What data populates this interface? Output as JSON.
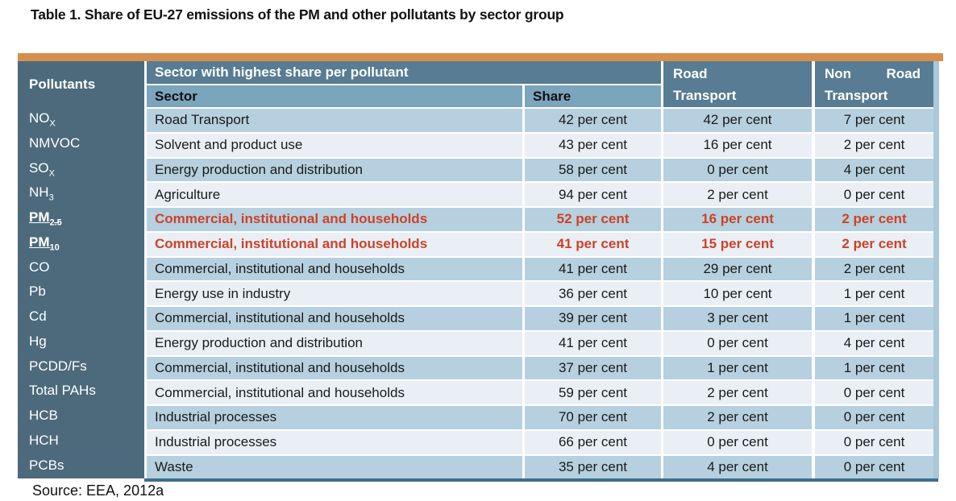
{
  "page": {
    "title": "Table 1. Share of EU-27 emissions of the PM and other pollutants by sector group",
    "source": "Source: EEA, 2012a"
  },
  "colors": {
    "accent_bar_orange": "#d68f4d",
    "pollutants_column_dark": "#4d6a7d",
    "header_blue": "#577c93",
    "subheader_blue": "#7ba4bd",
    "row_light_blue": "#b6d0df",
    "row_pale": "#eaeff5",
    "highlight_red": "#cd4227",
    "bottom_border_blue": "#3f6e8c",
    "right_border_strip": "#a9c8da"
  },
  "table": {
    "headers": {
      "pollutants": "Pollutants",
      "group": "Sector with highest share per pollutant",
      "sector": "Sector",
      "share": "Share",
      "road": {
        "line1": "Road",
        "line2": "Transport"
      },
      "nonroad": {
        "word1": "Non",
        "word2": "Road",
        "line2": "Transport"
      }
    },
    "rows": [
      {
        "pollutant": "NO",
        "sub": "X",
        "highlight": false,
        "sector": "Road Transport",
        "share": "42 per cent",
        "road": "42 per cent",
        "nonroad": "7 per cent"
      },
      {
        "pollutant": "NMVOC",
        "sub": "",
        "highlight": false,
        "sector": "Solvent and product use",
        "share": "43 per cent",
        "road": "16 per cent",
        "nonroad": "2 per cent"
      },
      {
        "pollutant": "SO",
        "sub": "X",
        "highlight": false,
        "sector": "Energy production and distribution",
        "share": "58 per cent",
        "road": "0 per cent",
        "nonroad": "4 per cent"
      },
      {
        "pollutant": "NH",
        "sub": "3",
        "highlight": false,
        "sector": "Agriculture",
        "share": "94 per cent",
        "road": "2 per cent",
        "nonroad": "0 per cent"
      },
      {
        "pollutant": "PM",
        "sub": "2.5",
        "highlight": true,
        "sector": "Commercial, institutional and households",
        "share": "52 per cent",
        "road": "16 per cent",
        "nonroad": "2 per cent"
      },
      {
        "pollutant": "PM",
        "sub": "10",
        "highlight": true,
        "sector": "Commercial, institutional and households",
        "share": "41 per cent",
        "road": "15 per cent",
        "nonroad": "2 per cent"
      },
      {
        "pollutant": "CO",
        "sub": "",
        "highlight": false,
        "sector": "Commercial, institutional and households",
        "share": "41 per cent",
        "road": "29 per cent",
        "nonroad": "2 per cent"
      },
      {
        "pollutant": "Pb",
        "sub": "",
        "highlight": false,
        "sector": "Energy use in industry",
        "share": "36 per cent",
        "road": "10 per cent",
        "nonroad": "1 per cent"
      },
      {
        "pollutant": "Cd",
        "sub": "",
        "highlight": false,
        "sector": "Commercial, institutional and households",
        "share": "39 per cent",
        "road": "3 per cent",
        "nonroad": "1 per cent"
      },
      {
        "pollutant": "Hg",
        "sub": "",
        "highlight": false,
        "sector": "Energy production and distribution",
        "share": "41 per cent",
        "road": "0 per cent",
        "nonroad": "4 per cent"
      },
      {
        "pollutant": "PCDD/Fs",
        "sub": "",
        "highlight": false,
        "sector": "Commercial, institutional and households",
        "share": "37 per cent",
        "road": "1 per cent",
        "nonroad": "1 per cent"
      },
      {
        "pollutant": "Total PAHs",
        "sub": "",
        "highlight": false,
        "sector": "Commercial, institutional and households",
        "share": "59 per cent",
        "road": "2 per cent",
        "nonroad": "0 per cent"
      },
      {
        "pollutant": "HCB",
        "sub": "",
        "highlight": false,
        "sector": "Industrial processes",
        "share": "70 per cent",
        "road": "2 per cent",
        "nonroad": "0 per cent"
      },
      {
        "pollutant": "HCH",
        "sub": "",
        "highlight": false,
        "sector": "Industrial processes",
        "share": "66 per cent",
        "road": "0 per cent",
        "nonroad": "0 per cent"
      },
      {
        "pollutant": "PCBs",
        "sub": "",
        "highlight": false,
        "sector": "Waste",
        "share": "35 per cent",
        "road": "4 per cent",
        "nonroad": "0 per cent"
      }
    ]
  }
}
